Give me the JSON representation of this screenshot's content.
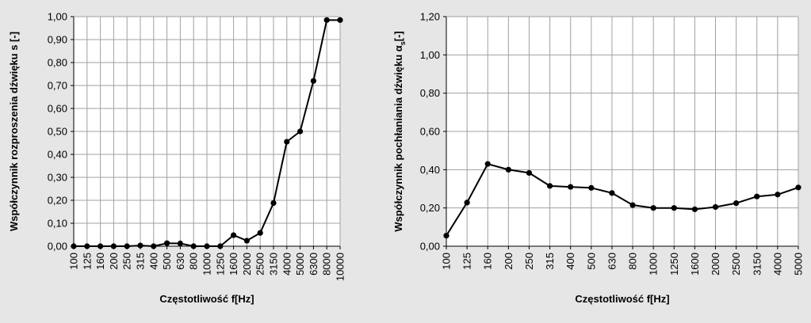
{
  "chart_data": [
    {
      "type": "line",
      "xlabel": "Częstotliwość f[Hz]",
      "ylabel": "Współczynnik rozproszenia dźwięku s [-]",
      "categories": [
        "100",
        "125",
        "160",
        "200",
        "250",
        "315",
        "400",
        "500",
        "630",
        "800",
        "1000",
        "1250",
        "1600",
        "2000",
        "2500",
        "3150",
        "4000",
        "5000",
        "6300",
        "8000",
        "10000"
      ],
      "series": [
        {
          "values": [
            0.0,
            0.0,
            0.0,
            0.0,
            0.0,
            0.003,
            0.0,
            0.013,
            0.012,
            0.0,
            0.0,
            0.0,
            0.048,
            0.024,
            0.058,
            0.188,
            0.455,
            0.5,
            0.72,
            0.985,
            0.985
          ]
        }
      ],
      "ylim": [
        0,
        1.0
      ],
      "yticks": [
        "0,00",
        "0,10",
        "0,20",
        "0,30",
        "0,40",
        "0,50",
        "0,60",
        "0,70",
        "0,80",
        "0,90",
        "1,00"
      ],
      "grid": true,
      "colors": {
        "line": "#000000",
        "grid": "#a0a0a0",
        "plot_bg": "#ffffff"
      }
    },
    {
      "type": "line",
      "xlabel": "Częstotliwość f[Hz]",
      "ylabel": "Współczynnik pochłaniania dźwięku αs[-]",
      "ylabel_parts": {
        "main": "Współczynnik pochłaniania dźwięku α",
        "sub": "s",
        "tail": "[-]"
      },
      "categories": [
        "100",
        "125",
        "160",
        "200",
        "250",
        "315",
        "400",
        "500",
        "630",
        "800",
        "1000",
        "1250",
        "1600",
        "2000",
        "2500",
        "3150",
        "4000",
        "5000"
      ],
      "series": [
        {
          "values": [
            0.055,
            0.228,
            0.43,
            0.4,
            0.383,
            0.315,
            0.31,
            0.305,
            0.278,
            0.215,
            0.2,
            0.2,
            0.193,
            0.205,
            0.225,
            0.26,
            0.27,
            0.307
          ]
        }
      ],
      "ylim": [
        0,
        1.2
      ],
      "yticks": [
        "0,00",
        "0,20",
        "0,40",
        "0,60",
        "0,80",
        "1,00",
        "1,20"
      ],
      "grid": true,
      "colors": {
        "line": "#000000",
        "grid": "#a0a0a0",
        "plot_bg": "#ffffff"
      }
    }
  ]
}
